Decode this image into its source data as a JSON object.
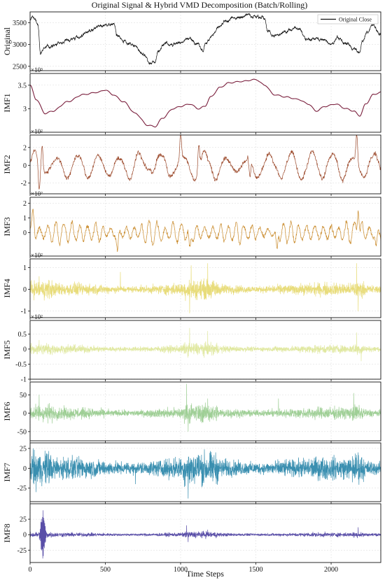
{
  "chart_data": {
    "type": "line",
    "title": "Original Signal & Hybrid VMD Decomposition (Batch/Rolling)",
    "xlabel": "Time Steps",
    "xlim": [
      0,
      2330
    ],
    "xticks": [
      0,
      500,
      1000,
      1500,
      2000
    ],
    "grid": true,
    "panels": [
      {
        "name": "Original",
        "ylabel": "Original",
        "color": "#111111",
        "kind": "price",
        "ylim": [
          2400,
          3750
        ],
        "yticks": [
          2500,
          3000,
          3500
        ],
        "sci": "",
        "legend": "Original Close",
        "legend_position": "top-right",
        "anchors": [
          [
            0,
            3550
          ],
          [
            15,
            3650
          ],
          [
            30,
            3600
          ],
          [
            50,
            3450
          ],
          [
            70,
            2800
          ],
          [
            100,
            2950
          ],
          [
            150,
            2950
          ],
          [
            200,
            3050
          ],
          [
            300,
            3150
          ],
          [
            400,
            3300
          ],
          [
            460,
            3400
          ],
          [
            500,
            3450
          ],
          [
            560,
            3500
          ],
          [
            575,
            3200
          ],
          [
            620,
            3100
          ],
          [
            700,
            2950
          ],
          [
            760,
            2750
          ],
          [
            800,
            2550
          ],
          [
            830,
            2600
          ],
          [
            850,
            2850
          ],
          [
            900,
            3050
          ],
          [
            950,
            3000
          ],
          [
            1000,
            3050
          ],
          [
            1050,
            3150
          ],
          [
            1100,
            3050
          ],
          [
            1150,
            2850
          ],
          [
            1170,
            3050
          ],
          [
            1200,
            3200
          ],
          [
            1260,
            3400
          ],
          [
            1300,
            3500
          ],
          [
            1340,
            3600
          ],
          [
            1400,
            3650
          ],
          [
            1450,
            3700
          ],
          [
            1500,
            3650
          ],
          [
            1540,
            3650
          ],
          [
            1560,
            3550
          ],
          [
            1580,
            3300
          ],
          [
            1620,
            3200
          ],
          [
            1700,
            3300
          ],
          [
            1780,
            3400
          ],
          [
            1840,
            3100
          ],
          [
            1900,
            3150
          ],
          [
            1950,
            3100
          ],
          [
            2000,
            3000
          ],
          [
            2050,
            3150
          ],
          [
            2100,
            3000
          ],
          [
            2150,
            2900
          ],
          [
            2190,
            2800
          ],
          [
            2210,
            3100
          ],
          [
            2240,
            3300
          ],
          [
            2280,
            3450
          ],
          [
            2330,
            3200
          ]
        ]
      },
      {
        "name": "IMF1",
        "ylabel": "IMF1",
        "color": "#7a1f3d",
        "kind": "smooth",
        "ylim": [
          2.5,
          3.75
        ],
        "yticks": [
          3.0,
          3.5
        ],
        "sci": "×10³",
        "anchors": [
          [
            0,
            3.5
          ],
          [
            40,
            3.2
          ],
          [
            100,
            2.9
          ],
          [
            150,
            2.95
          ],
          [
            250,
            3.15
          ],
          [
            350,
            3.3
          ],
          [
            450,
            3.35
          ],
          [
            500,
            3.4
          ],
          [
            550,
            3.3
          ],
          [
            620,
            3.15
          ],
          [
            700,
            2.9
          ],
          [
            780,
            2.65
          ],
          [
            830,
            2.62
          ],
          [
            880,
            2.8
          ],
          [
            950,
            3.0
          ],
          [
            1000,
            3.05
          ],
          [
            1060,
            3.1
          ],
          [
            1120,
            3.0
          ],
          [
            1160,
            3.05
          ],
          [
            1200,
            3.25
          ],
          [
            1260,
            3.45
          ],
          [
            1320,
            3.55
          ],
          [
            1400,
            3.58
          ],
          [
            1500,
            3.62
          ],
          [
            1560,
            3.5
          ],
          [
            1620,
            3.3
          ],
          [
            1700,
            3.25
          ],
          [
            1780,
            3.2
          ],
          [
            1850,
            3.1
          ],
          [
            1900,
            2.95
          ],
          [
            1960,
            3.05
          ],
          [
            2030,
            3.1
          ],
          [
            2100,
            3.0
          ],
          [
            2150,
            2.95
          ],
          [
            2190,
            2.85
          ],
          [
            2230,
            3.1
          ],
          [
            2280,
            3.3
          ],
          [
            2330,
            3.35
          ]
        ]
      },
      {
        "name": "IMF2",
        "ylabel": "IMF2",
        "color": "#9c4a2c",
        "kind": "wave",
        "ylim": [
          -3.2,
          3.4
        ],
        "yticks": [
          -2,
          0,
          2
        ],
        "sci": "×10²",
        "amp": 1.4,
        "freq": 0.045,
        "noise": 0.15,
        "spikes": [
          [
            60,
            -2.9
          ],
          [
            80,
            2.6
          ],
          [
            1000,
            3.0
          ],
          [
            1120,
            2.9
          ],
          [
            2170,
            3.1
          ],
          [
            1460,
            -2.3
          ]
        ]
      },
      {
        "name": "IMF3",
        "ylabel": "IMF3",
        "color": "#c98a2a",
        "kind": "wave",
        "ylim": [
          -1.6,
          2.4
        ],
        "yticks": [
          0,
          1,
          2
        ],
        "sci": "×10²",
        "amp": 0.6,
        "freq": 0.12,
        "noise": 0.2,
        "spikes": [
          [
            20,
            1.5
          ],
          [
            580,
            -1.4
          ],
          [
            1060,
            -1.5
          ],
          [
            1640,
            -1.3
          ],
          [
            2180,
            2.2
          ],
          [
            2300,
            -1.1
          ]
        ]
      },
      {
        "name": "IMF4",
        "ylabel": "IMF4",
        "color": "#e8dc7a",
        "kind": "noise",
        "ylim": [
          -1.3,
          1.4
        ],
        "yticks": [
          -1,
          0,
          1
        ],
        "sci": "×10²",
        "amp": 0.25,
        "spikes": [
          [
            1060,
            -1.1
          ],
          [
            1070,
            1.1
          ],
          [
            1180,
            1.2
          ],
          [
            2170,
            1.2
          ],
          [
            2180,
            -1.0
          ],
          [
            60,
            0.6
          ],
          [
            600,
            0.8
          ]
        ]
      },
      {
        "name": "IMF5",
        "ylabel": "IMF5",
        "color": "#e0e8a0",
        "kind": "noise",
        "ylim": [
          -1.0,
          0.95
        ],
        "yticks": [
          -1.0,
          -0.5,
          0.0,
          0.5
        ],
        "sci": "×10²",
        "amp": 0.12,
        "spikes": [
          [
            1060,
            -0.9
          ],
          [
            1060,
            0.7
          ],
          [
            1180,
            0.6
          ],
          [
            2170,
            0.55
          ],
          [
            2200,
            -0.4
          ],
          [
            60,
            0.3
          ]
        ]
      },
      {
        "name": "IMF6",
        "ylabel": "IMF6",
        "color": "#9fcf96",
        "kind": "noise",
        "ylim": [
          -75,
          85
        ],
        "yticks": [
          -50,
          0,
          50
        ],
        "sci": "",
        "amp": 14,
        "spikes": [
          [
            60,
            50
          ],
          [
            1040,
            80
          ],
          [
            1050,
            -50
          ],
          [
            1180,
            40
          ],
          [
            1650,
            40
          ],
          [
            2150,
            55
          ],
          [
            2330,
            -50
          ]
        ]
      },
      {
        "name": "IMF7",
        "ylabel": "IMF7",
        "color": "#3a8fb0",
        "kind": "noise",
        "ylim": [
          -42,
          32
        ],
        "yticks": [
          -25,
          0,
          25
        ],
        "sci": "",
        "amp": 12,
        "spikes": [
          [
            20,
            25
          ],
          [
            40,
            -30
          ],
          [
            1050,
            -38
          ],
          [
            2180,
            20
          ],
          [
            700,
            -20
          ]
        ]
      },
      {
        "name": "IMF8",
        "ylabel": "IMF8",
        "color": "#5a4fa8",
        "kind": "burst",
        "ylim": [
          -45,
          50
        ],
        "yticks": [
          -25,
          0,
          25
        ],
        "sci": "",
        "amp": 3,
        "burst": [
          60,
          110,
          40
        ],
        "spikes": [
          [
            1040,
            15
          ],
          [
            1050,
            -12
          ],
          [
            2180,
            12
          ],
          [
            1180,
            8
          ]
        ]
      }
    ]
  }
}
